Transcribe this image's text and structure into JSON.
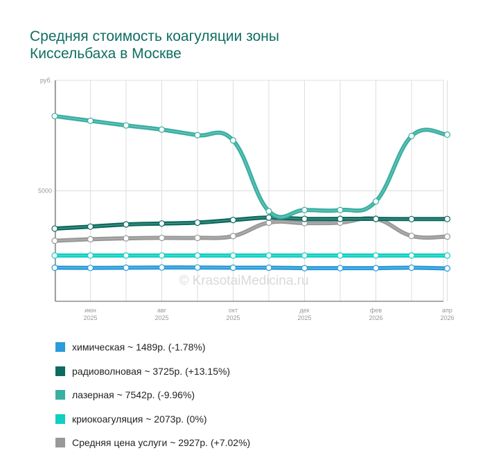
{
  "title_line1": "Средняя стоимость коагуляции зоны",
  "title_line2": "Киссельбаха в Москве",
  "watermark": "© KrasotaiMedicina.ru",
  "chart_data": {
    "type": "line",
    "title": "Средняя стоимость коагуляции зоны Киссельбаха в Москве",
    "ylabel": "руб.",
    "y_tick_labels": [
      "5000"
    ],
    "ylim": [
      0,
      10000
    ],
    "grid": true,
    "x": [
      "2025-05",
      "2025-06",
      "2025-07",
      "2025-08",
      "2025-09",
      "2025-10",
      "2025-11",
      "2025-12",
      "2026-01",
      "2026-02",
      "2026-03",
      "2026-04"
    ],
    "x_tick_labels": [
      {
        "month": "июн",
        "year": "2025",
        "index": 1
      },
      {
        "month": "авг",
        "year": "2025",
        "index": 3
      },
      {
        "month": "окт",
        "year": "2025",
        "index": 5
      },
      {
        "month": "дек",
        "year": "2025",
        "index": 7
      },
      {
        "month": "фев",
        "year": "2026",
        "index": 9
      },
      {
        "month": "апр",
        "year": "2026",
        "index": 11
      }
    ],
    "series": [
      {
        "name": "химическая",
        "color": "#2b9bd9",
        "values": [
          1520,
          1510,
          1520,
          1530,
          1530,
          1520,
          1520,
          1500,
          1500,
          1500,
          1520,
          1489
        ]
      },
      {
        "name": "радиоволновая",
        "color": "#0d6b5f",
        "values": [
          3290,
          3380,
          3480,
          3520,
          3560,
          3680,
          3790,
          3730,
          3730,
          3730,
          3720,
          3725
        ]
      },
      {
        "name": "лазерная",
        "color": "#3aafa2",
        "values": [
          8380,
          8170,
          7960,
          7770,
          7520,
          7280,
          4080,
          4130,
          4130,
          4520,
          7480,
          7542
        ]
      },
      {
        "name": "криокоагуляция",
        "color": "#11cec2",
        "values": [
          2073,
          2073,
          2073,
          2073,
          2073,
          2073,
          2073,
          2073,
          2073,
          2073,
          2073,
          2073
        ]
      },
      {
        "name": "Средняя цена услуги",
        "color": "#999999",
        "values": [
          2740,
          2810,
          2850,
          2870,
          2870,
          2950,
          3560,
          3540,
          3560,
          3730,
          2960,
          2927
        ]
      }
    ]
  },
  "legend": [
    {
      "text": "химическая ~ 1489р. (-1.78%)",
      "color": "#2b9bd9"
    },
    {
      "text": "радиоволновая ~ 3725р. (+13.15%)",
      "color": "#0d6b5f"
    },
    {
      "text": "лазерная ~ 7542р. (-9.96%)",
      "color": "#3aafa2"
    },
    {
      "text": "криокоагуляция ~ 2073р. (0%)",
      "color": "#11cec2"
    },
    {
      "text": "Средняя цена услуги ~ 2927р. (+7.02%)",
      "color": "#999999"
    }
  ]
}
